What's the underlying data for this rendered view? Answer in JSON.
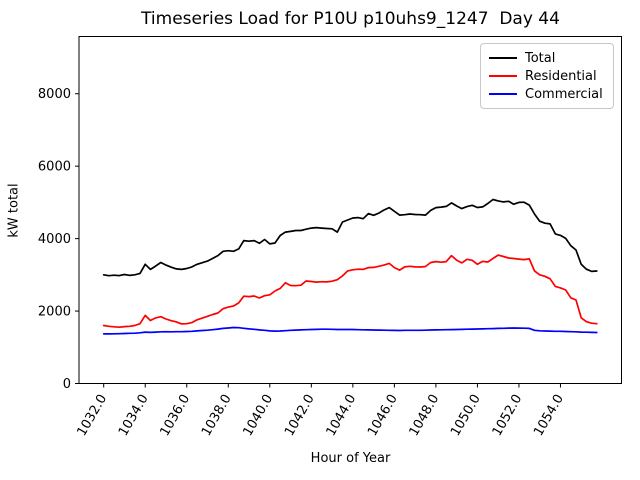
{
  "window": {
    "background_color": "#ffffff"
  },
  "chart_data": {
    "type": "line",
    "title": "Timeseries Load for P10U p10uhs9_1247  Day 44",
    "xlabel": "Hour of Year",
    "ylabel": "kW total",
    "grid": false,
    "legend_position": "upper right",
    "axis_color": "#000000",
    "legend_border_color": "#c8c8c8",
    "xlim": [
      1030.81,
      1056.94
    ],
    "ylim": [
      0,
      9580
    ],
    "yticks": [
      0,
      2000,
      4000,
      6000,
      8000
    ],
    "ytick_labels": [
      "0",
      "2000",
      "4000",
      "6000",
      "8000"
    ],
    "xticks": [
      1032,
      1034,
      1036,
      1038,
      1040,
      1042,
      1044,
      1046,
      1048,
      1050,
      1052,
      1054
    ],
    "xtick_labels": [
      "1032.0",
      "1034.0",
      "1036.0",
      "1038.0",
      "1040.0",
      "1042.0",
      "1044.0",
      "1046.0",
      "1048.0",
      "1050.0",
      "1052.0",
      "1054.0"
    ],
    "xtick_rotation_deg": 60,
    "x": [
      1032.0,
      1032.25,
      1032.5,
      1032.75,
      1033.0,
      1033.25,
      1033.5,
      1033.75,
      1034.0,
      1034.25,
      1034.5,
      1034.75,
      1035.0,
      1035.25,
      1035.5,
      1035.75,
      1036.0,
      1036.25,
      1036.5,
      1036.75,
      1037.0,
      1037.25,
      1037.5,
      1037.75,
      1038.0,
      1038.25,
      1038.5,
      1038.75,
      1039.0,
      1039.25,
      1039.5,
      1039.75,
      1040.0,
      1040.25,
      1040.5,
      1040.75,
      1041.0,
      1041.25,
      1041.5,
      1041.75,
      1042.0,
      1042.25,
      1042.5,
      1042.75,
      1043.0,
      1043.25,
      1043.5,
      1043.75,
      1044.0,
      1044.25,
      1044.5,
      1044.75,
      1045.0,
      1045.25,
      1045.5,
      1045.75,
      1046.0,
      1046.25,
      1046.5,
      1046.75,
      1047.0,
      1047.25,
      1047.5,
      1047.75,
      1048.0,
      1048.25,
      1048.5,
      1048.75,
      1049.0,
      1049.25,
      1049.5,
      1049.75,
      1050.0,
      1050.25,
      1050.5,
      1050.75,
      1051.0,
      1051.25,
      1051.5,
      1051.75,
      1052.0,
      1052.25,
      1052.5,
      1052.75,
      1053.0,
      1053.25,
      1053.5,
      1053.75,
      1054.0,
      1054.25,
      1054.5,
      1054.75,
      1055.0,
      1055.25,
      1055.5,
      1055.75
    ],
    "series": [
      {
        "name": "Total",
        "color": "#000000",
        "values": [
          3000,
          2975,
          2990,
          2980,
          3010,
          2985,
          3000,
          3040,
          3290,
          3150,
          3240,
          3340,
          3270,
          3210,
          3165,
          3150,
          3175,
          3220,
          3290,
          3335,
          3380,
          3455,
          3530,
          3650,
          3665,
          3650,
          3715,
          3945,
          3930,
          3945,
          3870,
          3975,
          3855,
          3880,
          4085,
          4180,
          4200,
          4225,
          4225,
          4260,
          4290,
          4305,
          4290,
          4280,
          4270,
          4180,
          4460,
          4515,
          4570,
          4580,
          4550,
          4690,
          4645,
          4705,
          4790,
          4855,
          4755,
          4650,
          4660,
          4680,
          4665,
          4660,
          4650,
          4780,
          4855,
          4870,
          4890,
          4985,
          4900,
          4830,
          4885,
          4920,
          4860,
          4875,
          4970,
          5080,
          5040,
          5015,
          5030,
          4950,
          5000,
          5005,
          4925,
          4680,
          4480,
          4425,
          4405,
          4130,
          4090,
          4005,
          3805,
          3685,
          3290,
          3155,
          3095,
          3105
        ]
      },
      {
        "name": "Residential",
        "color": "#ff0000",
        "values": [
          1600,
          1580,
          1565,
          1555,
          1570,
          1580,
          1600,
          1650,
          1880,
          1740,
          1810,
          1845,
          1780,
          1735,
          1700,
          1645,
          1650,
          1680,
          1760,
          1805,
          1855,
          1905,
          1945,
          2065,
          2110,
          2140,
          2225,
          2410,
          2400,
          2415,
          2360,
          2425,
          2450,
          2555,
          2625,
          2780,
          2705,
          2700,
          2715,
          2830,
          2815,
          2800,
          2810,
          2805,
          2825,
          2865,
          2970,
          3110,
          3140,
          3155,
          3150,
          3200,
          3205,
          3235,
          3270,
          3315,
          3200,
          3130,
          3220,
          3235,
          3220,
          3215,
          3230,
          3340,
          3365,
          3350,
          3365,
          3530,
          3400,
          3330,
          3430,
          3400,
          3290,
          3370,
          3355,
          3455,
          3545,
          3505,
          3465,
          3450,
          3435,
          3420,
          3440,
          3110,
          3000,
          2960,
          2890,
          2680,
          2640,
          2580,
          2365,
          2305,
          1815,
          1705,
          1665,
          1650
        ]
      },
      {
        "name": "Commercial",
        "color": "#0000ff",
        "values": [
          1370,
          1368,
          1372,
          1375,
          1380,
          1385,
          1390,
          1400,
          1418,
          1412,
          1420,
          1428,
          1430,
          1427,
          1430,
          1430,
          1436,
          1442,
          1452,
          1462,
          1472,
          1485,
          1502,
          1520,
          1532,
          1545,
          1540,
          1525,
          1508,
          1496,
          1480,
          1468,
          1452,
          1446,
          1450,
          1458,
          1468,
          1475,
          1480,
          1486,
          1490,
          1494,
          1498,
          1500,
          1496,
          1492,
          1490,
          1490,
          1490,
          1486,
          1482,
          1480,
          1476,
          1474,
          1472,
          1470,
          1466,
          1464,
          1468,
          1470,
          1470,
          1470,
          1472,
          1476,
          1480,
          1482,
          1485,
          1487,
          1490,
          1494,
          1500,
          1502,
          1505,
          1507,
          1512,
          1516,
          1521,
          1525,
          1530,
          1531,
          1530,
          1526,
          1520,
          1468,
          1455,
          1450,
          1446,
          1442,
          1440,
          1436,
          1430,
          1426,
          1420,
          1416,
          1411,
          1407
        ]
      }
    ]
  }
}
